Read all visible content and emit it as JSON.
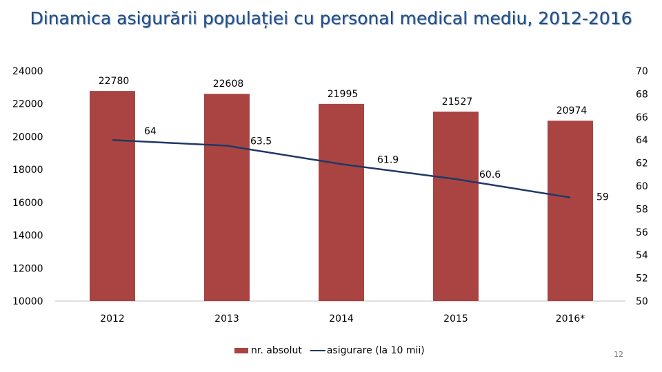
{
  "title": "Dinamica  asigurării  populației  cu  personal  medical mediu, 2012-2016",
  "page_number": "12",
  "colors": {
    "bar": "#a94442",
    "line": "#1f3864",
    "title": "#1f4e8c"
  },
  "legend": {
    "bar_label": "nr. absolut",
    "line_label": "asigurare (la 10 mii)"
  },
  "chart_data": {
    "type": "bar",
    "title": "Dinamica  asigurării  populației  cu  personal  medical mediu, 2012-2016",
    "categories": [
      "2012",
      "2013",
      "2014",
      "2015",
      "2016*"
    ],
    "series": [
      {
        "name": "nr. absolut",
        "type": "bar",
        "axis": "left",
        "values": [
          22780,
          22608,
          21995,
          21527,
          20974
        ],
        "labels": [
          "22780",
          "22608",
          "21995",
          "21527",
          "20974"
        ]
      },
      {
        "name": "asigurare (la 10 mii)",
        "type": "line",
        "axis": "right",
        "values": [
          64,
          63.5,
          61.9,
          60.6,
          59
        ],
        "labels": [
          "64",
          "63.5",
          "61.9",
          "60.6",
          "59"
        ]
      }
    ],
    "left_axis": {
      "min": 10000,
      "max": 24000,
      "ticks": [
        "10000",
        "12000",
        "14000",
        "16000",
        "18000",
        "20000",
        "22000",
        "24000"
      ]
    },
    "right_axis": {
      "min": 50,
      "max": 70,
      "ticks": [
        "50",
        "52",
        "54",
        "56",
        "58",
        "60",
        "62",
        "64",
        "66",
        "68",
        "70"
      ]
    },
    "legend_position": "bottom"
  }
}
